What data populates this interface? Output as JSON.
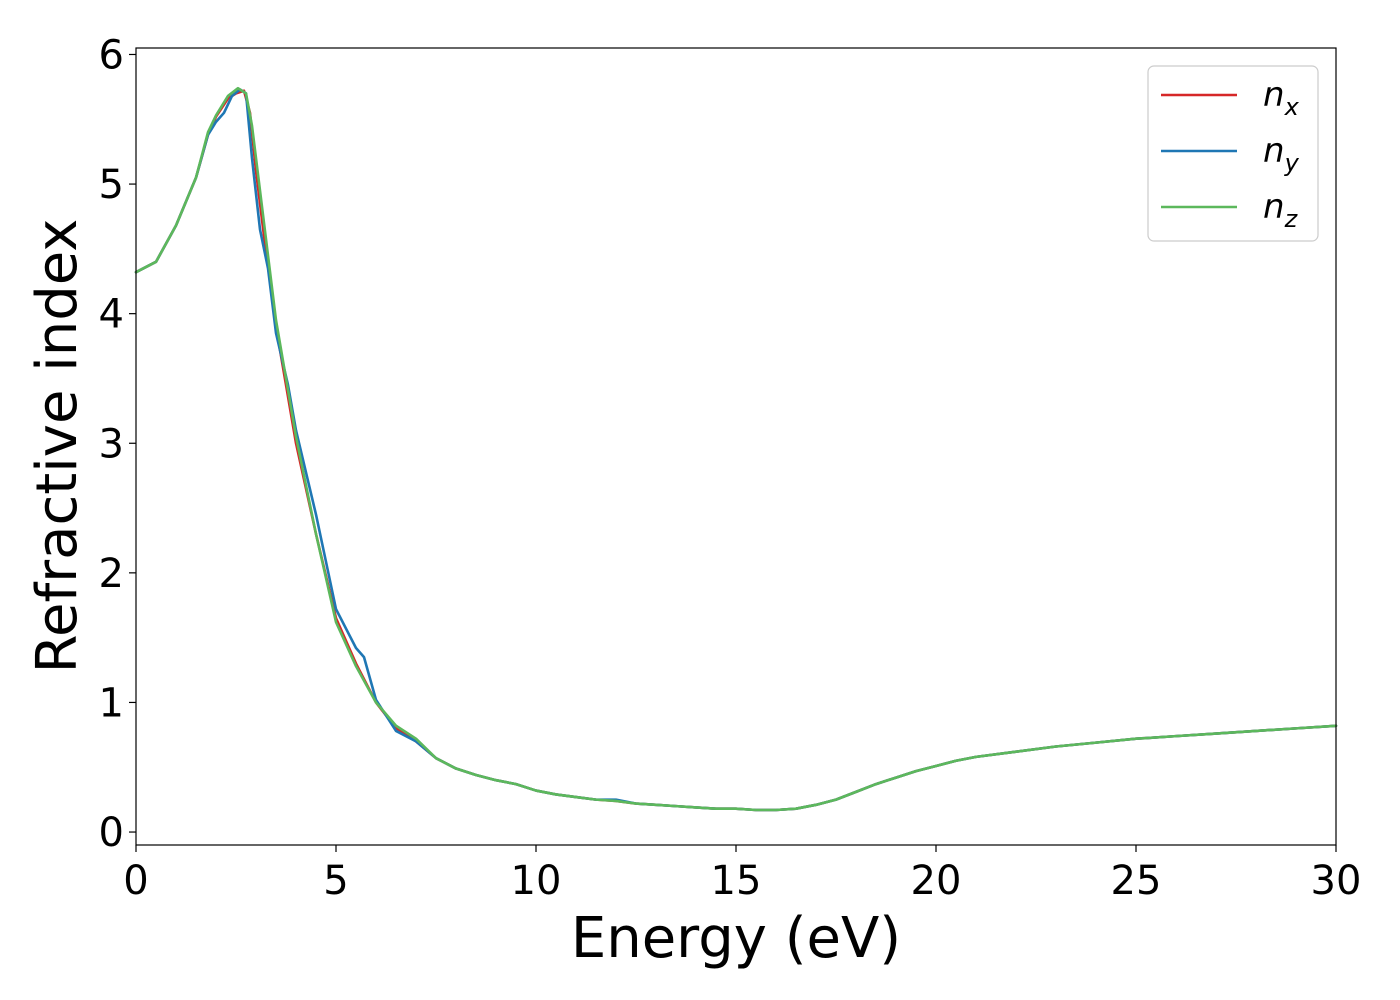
{
  "chart_data": {
    "type": "line",
    "xlabel": "Energy (eV)",
    "ylabel": "Refractive index",
    "xlim": [
      0,
      30
    ],
    "ylim": [
      -0.1,
      6.05
    ],
    "xticks": [
      "0",
      "5",
      "10",
      "15",
      "20",
      "25",
      "30"
    ],
    "yticks": [
      "0",
      "1",
      "2",
      "3",
      "4",
      "5",
      "6"
    ],
    "grid": false,
    "legend_position": "top-right",
    "series": [
      {
        "name": "n_x",
        "legend_main": "n",
        "legend_sub": "x",
        "color": "#d62728",
        "points": [
          [
            0,
            4.32
          ],
          [
            0.5,
            4.4
          ],
          [
            1.0,
            4.68
          ],
          [
            1.5,
            5.05
          ],
          [
            1.8,
            5.38
          ],
          [
            2.0,
            5.52
          ],
          [
            2.3,
            5.66
          ],
          [
            2.5,
            5.7
          ],
          [
            2.7,
            5.72
          ],
          [
            2.85,
            5.55
          ],
          [
            3.0,
            5.1
          ],
          [
            3.2,
            4.6
          ],
          [
            3.5,
            3.9
          ],
          [
            4.0,
            3.0
          ],
          [
            4.5,
            2.3
          ],
          [
            5.0,
            1.65
          ],
          [
            5.5,
            1.3
          ],
          [
            6.0,
            1.0
          ],
          [
            6.5,
            0.8
          ],
          [
            7.0,
            0.7
          ],
          [
            7.5,
            0.57
          ],
          [
            8.0,
            0.49
          ],
          [
            8.5,
            0.44
          ],
          [
            9.0,
            0.4
          ],
          [
            9.5,
            0.37
          ],
          [
            10.0,
            0.32
          ],
          [
            10.5,
            0.29
          ],
          [
            11.0,
            0.27
          ],
          [
            11.5,
            0.25
          ],
          [
            12.0,
            0.24
          ],
          [
            12.5,
            0.22
          ],
          [
            13.0,
            0.21
          ],
          [
            13.5,
            0.2
          ],
          [
            14.0,
            0.19
          ],
          [
            14.5,
            0.18
          ],
          [
            15.0,
            0.18
          ],
          [
            15.5,
            0.17
          ],
          [
            16.0,
            0.17
          ],
          [
            16.5,
            0.18
          ],
          [
            17.0,
            0.21
          ],
          [
            17.5,
            0.25
          ],
          [
            18.0,
            0.31
          ],
          [
            18.5,
            0.37
          ],
          [
            19.0,
            0.42
          ],
          [
            19.5,
            0.47
          ],
          [
            20.0,
            0.51
          ],
          [
            20.5,
            0.55
          ],
          [
            21.0,
            0.58
          ],
          [
            22.0,
            0.62
          ],
          [
            23.0,
            0.66
          ],
          [
            24.0,
            0.69
          ],
          [
            25.0,
            0.72
          ],
          [
            26.0,
            0.74
          ],
          [
            27.0,
            0.76
          ],
          [
            28.0,
            0.78
          ],
          [
            29.0,
            0.8
          ],
          [
            30.0,
            0.82
          ]
        ]
      },
      {
        "name": "n_y",
        "legend_main": "n",
        "legend_sub": "y",
        "color": "#1f77b4",
        "points": [
          [
            0,
            4.32
          ],
          [
            0.5,
            4.4
          ],
          [
            1.0,
            4.68
          ],
          [
            1.5,
            5.05
          ],
          [
            1.8,
            5.38
          ],
          [
            2.0,
            5.48
          ],
          [
            2.2,
            5.55
          ],
          [
            2.4,
            5.68
          ],
          [
            2.6,
            5.73
          ],
          [
            2.75,
            5.7
          ],
          [
            2.9,
            5.2
          ],
          [
            3.1,
            4.65
          ],
          [
            3.3,
            4.35
          ],
          [
            3.5,
            3.85
          ],
          [
            3.8,
            3.45
          ],
          [
            4.0,
            3.1
          ],
          [
            4.5,
            2.45
          ],
          [
            5.0,
            1.72
          ],
          [
            5.5,
            1.42
          ],
          [
            5.7,
            1.35
          ],
          [
            6.0,
            1.02
          ],
          [
            6.5,
            0.78
          ],
          [
            7.0,
            0.7
          ],
          [
            7.5,
            0.57
          ],
          [
            8.0,
            0.49
          ],
          [
            8.5,
            0.44
          ],
          [
            9.0,
            0.4
          ],
          [
            9.5,
            0.37
          ],
          [
            10.0,
            0.32
          ],
          [
            10.5,
            0.29
          ],
          [
            11.0,
            0.27
          ],
          [
            11.5,
            0.25
          ],
          [
            12.0,
            0.25
          ],
          [
            12.5,
            0.22
          ],
          [
            13.0,
            0.21
          ],
          [
            13.5,
            0.2
          ],
          [
            14.0,
            0.19
          ],
          [
            14.5,
            0.18
          ],
          [
            15.0,
            0.18
          ],
          [
            15.5,
            0.17
          ],
          [
            16.0,
            0.17
          ],
          [
            16.5,
            0.18
          ],
          [
            17.0,
            0.21
          ],
          [
            17.5,
            0.25
          ],
          [
            18.0,
            0.31
          ],
          [
            18.5,
            0.37
          ],
          [
            19.0,
            0.42
          ],
          [
            19.5,
            0.47
          ],
          [
            20.0,
            0.51
          ],
          [
            20.5,
            0.55
          ],
          [
            21.0,
            0.58
          ],
          [
            22.0,
            0.62
          ],
          [
            23.0,
            0.66
          ],
          [
            24.0,
            0.69
          ],
          [
            25.0,
            0.72
          ],
          [
            26.0,
            0.74
          ],
          [
            27.0,
            0.76
          ],
          [
            28.0,
            0.78
          ],
          [
            29.0,
            0.8
          ],
          [
            30.0,
            0.82
          ]
        ]
      },
      {
        "name": "n_z",
        "legend_main": "n",
        "legend_sub": "z",
        "color": "#5cb85c",
        "points": [
          [
            0,
            4.32
          ],
          [
            0.5,
            4.4
          ],
          [
            1.0,
            4.68
          ],
          [
            1.5,
            5.05
          ],
          [
            1.8,
            5.4
          ],
          [
            2.0,
            5.53
          ],
          [
            2.3,
            5.68
          ],
          [
            2.55,
            5.74
          ],
          [
            2.75,
            5.7
          ],
          [
            2.9,
            5.45
          ],
          [
            3.1,
            4.95
          ],
          [
            3.3,
            4.45
          ],
          [
            3.5,
            3.95
          ],
          [
            4.0,
            3.05
          ],
          [
            4.5,
            2.3
          ],
          [
            5.0,
            1.62
          ],
          [
            5.5,
            1.28
          ],
          [
            6.0,
            1.0
          ],
          [
            6.5,
            0.82
          ],
          [
            7.0,
            0.72
          ],
          [
            7.5,
            0.57
          ],
          [
            8.0,
            0.49
          ],
          [
            8.5,
            0.44
          ],
          [
            9.0,
            0.4
          ],
          [
            9.5,
            0.37
          ],
          [
            10.0,
            0.32
          ],
          [
            10.5,
            0.29
          ],
          [
            11.0,
            0.27
          ],
          [
            11.5,
            0.25
          ],
          [
            12.0,
            0.24
          ],
          [
            12.5,
            0.22
          ],
          [
            13.0,
            0.21
          ],
          [
            13.5,
            0.2
          ],
          [
            14.0,
            0.19
          ],
          [
            14.5,
            0.18
          ],
          [
            15.0,
            0.18
          ],
          [
            15.5,
            0.17
          ],
          [
            16.0,
            0.17
          ],
          [
            16.5,
            0.18
          ],
          [
            17.0,
            0.21
          ],
          [
            17.5,
            0.25
          ],
          [
            18.0,
            0.31
          ],
          [
            18.5,
            0.37
          ],
          [
            19.0,
            0.42
          ],
          [
            19.5,
            0.47
          ],
          [
            20.0,
            0.51
          ],
          [
            20.5,
            0.55
          ],
          [
            21.0,
            0.58
          ],
          [
            22.0,
            0.62
          ],
          [
            23.0,
            0.66
          ],
          [
            24.0,
            0.69
          ],
          [
            25.0,
            0.72
          ],
          [
            26.0,
            0.74
          ],
          [
            27.0,
            0.76
          ],
          [
            28.0,
            0.78
          ],
          [
            29.0,
            0.8
          ],
          [
            30.0,
            0.82
          ]
        ]
      }
    ]
  }
}
